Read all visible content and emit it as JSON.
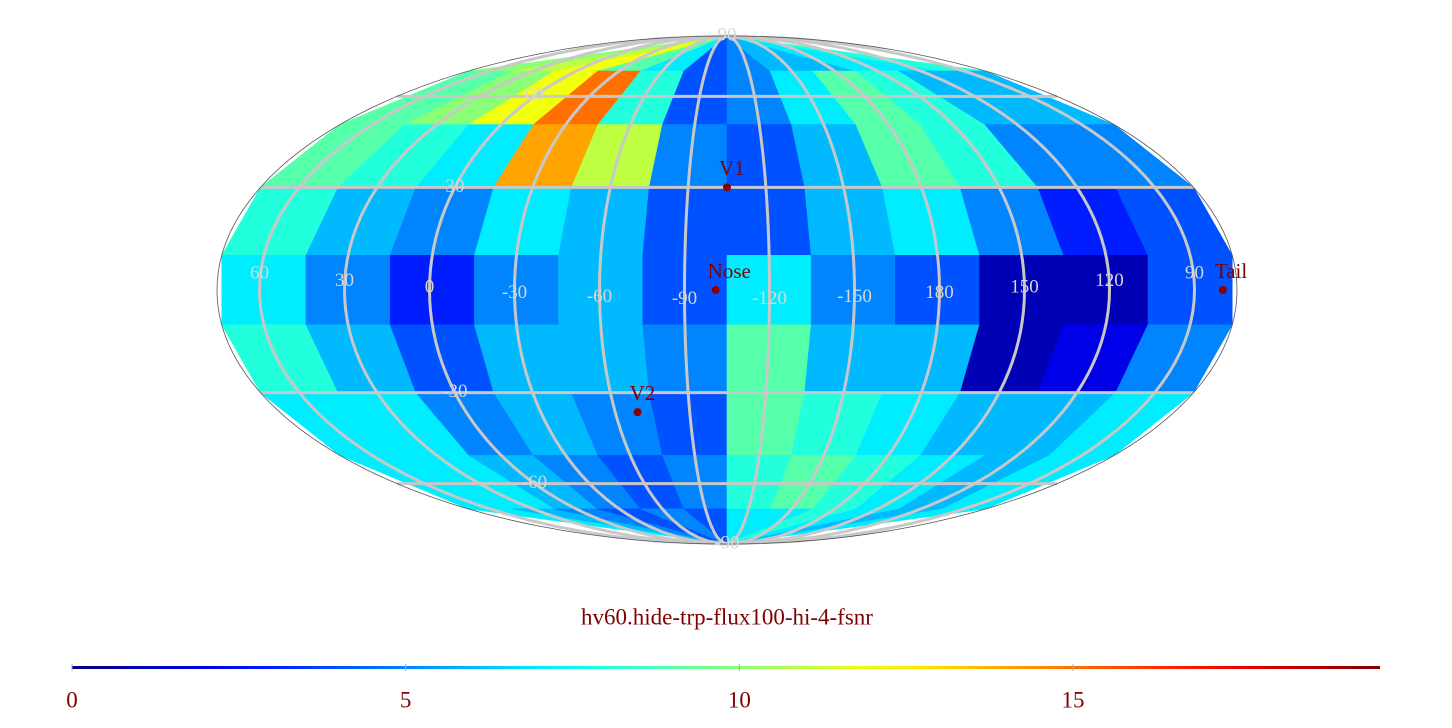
{
  "title": "hv60.hide-trp-flux100-hi-4-fsnr",
  "map": {
    "grid": [
      [
        10,
        11,
        12,
        9,
        7,
        4,
        5,
        6,
        6,
        7,
        7,
        8
      ],
      [
        9,
        10,
        12,
        15,
        8,
        4,
        5,
        7,
        9,
        8,
        6,
        6
      ],
      [
        9,
        8,
        7,
        14,
        11,
        5,
        4,
        6,
        9,
        8,
        5,
        5
      ],
      [
        8,
        6,
        5,
        7,
        6,
        4,
        4,
        6,
        7,
        5,
        3,
        4
      ],
      [
        7,
        5,
        3,
        5,
        6,
        4,
        7,
        5,
        4,
        1,
        1,
        4
      ],
      [
        8,
        6,
        4,
        6,
        6,
        5,
        9,
        6,
        6,
        1,
        2,
        5
      ],
      [
        7,
        7,
        5,
        6,
        5,
        4,
        9,
        8,
        7,
        6,
        6,
        7
      ],
      [
        7,
        7,
        6,
        5,
        4,
        5,
        8,
        9,
        8,
        7,
        6,
        7
      ],
      [
        7,
        6,
        5,
        4,
        5,
        4,
        7,
        7,
        8,
        7,
        6,
        7
      ]
    ],
    "meridian_labels": [
      60,
      30,
      0,
      -30,
      -60,
      -90,
      -120,
      -150,
      180,
      150,
      120,
      90
    ],
    "parallel_labels": [
      90,
      60,
      30,
      -30,
      -60,
      -90
    ],
    "markers": [
      {
        "label": "V1",
        "lon": -105,
        "lat": 30
      },
      {
        "label": "Nose",
        "lon": -101,
        "lat": 0
      },
      {
        "label": "V2",
        "lon": -69,
        "lat": -36
      },
      {
        "label": "Tail",
        "lon": 80,
        "lat": 0
      }
    ]
  },
  "colorbar": {
    "range": [
      0,
      19.6
    ],
    "ticks": [
      0,
      5,
      10,
      15
    ]
  }
}
